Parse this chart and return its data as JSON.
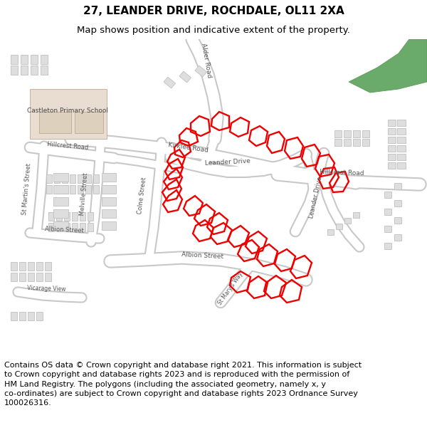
{
  "title": "27, LEANDER DRIVE, ROCHDALE, OL11 2XA",
  "subtitle": "Map shows position and indicative extent of the property.",
  "footer": "Contains OS data © Crown copyright and database right 2021. This information is subject\nto Crown copyright and database rights 2023 and is reproduced with the permission of\nHM Land Registry. The polygons (including the associated geometry, namely x, y\nco-ordinates) are subject to Crown copyright and database rights 2023 Ordnance Survey\n100026316.",
  "bg_color": "#ffffff",
  "map_bg": "#f0f0f0",
  "road_color": "#ffffff",
  "road_outline": "#cccccc",
  "building_fill": "#dedede",
  "building_edge": "#c0c0c0",
  "red_outline": "#ee0000",
  "green_park": "#6aaa6a",
  "school_fill": "#e8ddd0",
  "title_fontsize": 11,
  "subtitle_fontsize": 9.5,
  "footer_fontsize": 8.0
}
